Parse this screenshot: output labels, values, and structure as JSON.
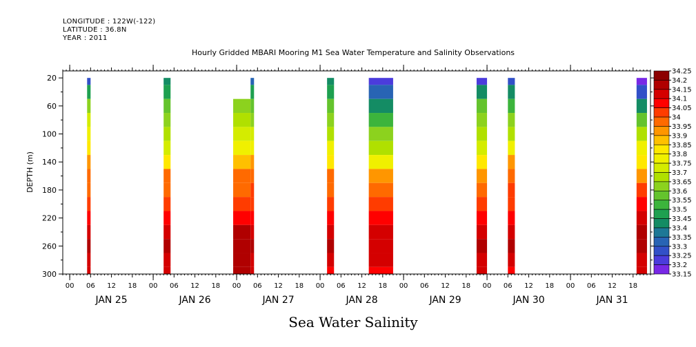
{
  "header": {
    "longitude": "LONGITUDE : 122W(-122)",
    "latitude": "LATITUDE : 36.8N",
    "year": "YEAR : 2011",
    "title": "Hourly Gridded MBARI Mooring M1 Sea Water Temperature and Salinity Observations"
  },
  "footer": {
    "variable_title": "Sea Water Salinity"
  },
  "chart_data": {
    "type": "heatmap",
    "title": "Hourly Gridded MBARI Mooring M1 Sea Water Temperature and Salinity Observations",
    "xlabel": "",
    "ylabel": "DEPTH (m)",
    "ylim": [
      300,
      10
    ],
    "y_inverted": true,
    "y_ticks": [
      20,
      60,
      100,
      140,
      180,
      220,
      260,
      300
    ],
    "x_hour_ticks": [
      "00",
      "06",
      "12",
      "18",
      "00",
      "06",
      "12",
      "18",
      "00",
      "06",
      "12",
      "18",
      "00",
      "06",
      "12",
      "18",
      "00",
      "06",
      "12",
      "18",
      "00",
      "06",
      "12",
      "18",
      "00",
      "06",
      "12",
      "18"
    ],
    "x_day_labels": [
      "JAN 25",
      "JAN 26",
      "JAN 27",
      "JAN 28",
      "JAN 29",
      "JAN 30",
      "JAN 31"
    ],
    "x_range_hours": [
      -2,
      167
    ],
    "colorbar": {
      "levels": [
        34.25,
        34.2,
        34.15,
        34.1,
        34.05,
        34,
        33.95,
        33.9,
        33.85,
        33.8,
        33.75,
        33.7,
        33.65,
        33.6,
        33.55,
        33.5,
        33.45,
        33.4,
        33.35,
        33.3,
        33.25,
        33.2,
        33.15
      ],
      "colors": [
        "#8c0000",
        "#b00000",
        "#d40000",
        "#ff0000",
        "#ff3c00",
        "#ff6a00",
        "#ff9600",
        "#ffc000",
        "#ffe800",
        "#f0f000",
        "#d4ec00",
        "#b0e000",
        "#8cd21e",
        "#64c32d",
        "#3cb43c",
        "#1ea050",
        "#148c64",
        "#1e7896",
        "#2864b4",
        "#3250c8",
        "#4b3cdc",
        "#7828e6",
        "#c800ff"
      ]
    },
    "depths": [
      20,
      40,
      60,
      80,
      100,
      120,
      140,
      160,
      180,
      200,
      220,
      240,
      260,
      280,
      300
    ],
    "columns": [
      {
        "h_start": 5,
        "h_end": 6,
        "values": [
          33.3,
          33.5,
          33.65,
          33.75,
          33.8,
          33.85,
          33.95,
          34.0,
          34.0,
          34.05,
          34.1,
          34.15,
          34.2,
          34.15,
          34.15
        ]
      },
      {
        "h_start": 27,
        "h_end": 29,
        "values": [
          33.45,
          33.5,
          33.6,
          33.65,
          33.7,
          33.75,
          33.85,
          34.0,
          34.0,
          34.05,
          34.1,
          34.15,
          34.2,
          34.15,
          34.15
        ]
      },
      {
        "h_start": 47,
        "h_end": 52,
        "values": [
          null,
          null,
          33.65,
          33.7,
          33.75,
          33.8,
          33.9,
          34.0,
          34.0,
          34.05,
          34.1,
          34.2,
          34.2,
          34.2,
          34.2
        ]
      },
      {
        "h_start": 52,
        "h_end": 53,
        "values": [
          33.35,
          33.5,
          33.6,
          33.65,
          33.75,
          33.8,
          33.95,
          34.0,
          34.05,
          34.05,
          34.1,
          34.15,
          34.2,
          34.15,
          34.15
        ]
      },
      {
        "h_start": 74,
        "h_end": 76,
        "values": [
          33.45,
          33.5,
          33.6,
          33.65,
          33.7,
          33.8,
          33.85,
          34.0,
          34.0,
          34.05,
          34.1,
          34.15,
          34.2,
          34.15,
          34.1
        ]
      },
      {
        "h_start": 86,
        "h_end": 93,
        "values": [
          33.25,
          33.35,
          33.45,
          33.55,
          33.65,
          33.7,
          33.8,
          33.95,
          34.0,
          34.05,
          34.1,
          34.15,
          34.15,
          34.15,
          34.1
        ]
      },
      {
        "h_start": 117,
        "h_end": 120,
        "values": [
          33.25,
          33.45,
          33.6,
          33.65,
          33.7,
          33.75,
          33.85,
          33.95,
          34.0,
          34.05,
          34.1,
          34.15,
          34.2,
          34.15,
          34.15
        ]
      },
      {
        "h_start": 126,
        "h_end": 128,
        "values": [
          33.3,
          33.45,
          33.55,
          33.65,
          33.7,
          33.8,
          33.95,
          34.0,
          34.05,
          34.05,
          34.1,
          34.15,
          34.2,
          34.15,
          34.1
        ]
      },
      {
        "h_start": 163,
        "h_end": 166,
        "values": [
          33.2,
          33.3,
          33.45,
          33.6,
          33.7,
          33.8,
          33.85,
          33.95,
          34.05,
          34.1,
          34.15,
          34.2,
          34.2,
          34.15,
          34.15
        ]
      }
    ]
  }
}
